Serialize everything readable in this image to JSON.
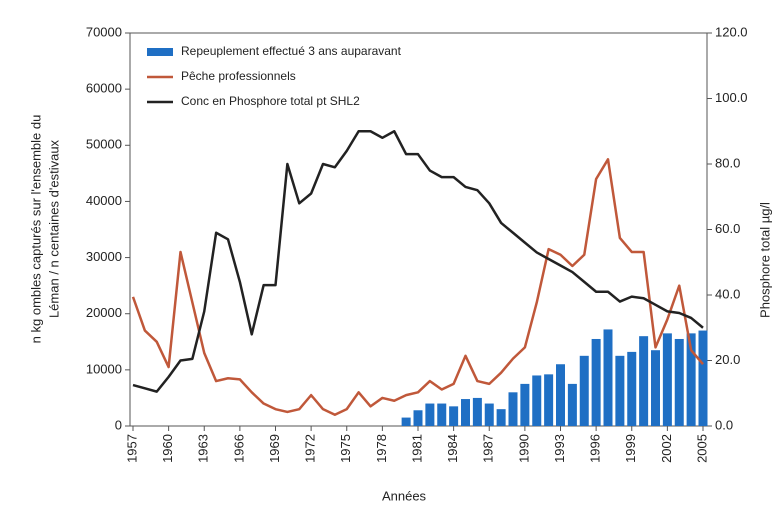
{
  "chart_data": {
    "type": "combo",
    "xlabel": "Années",
    "ylabel": [
      "n kg ombles capturés sur l'ensemble du",
      "Léman / n centaines d'estivaux"
    ],
    "y2label": "Phosphore total µg/l",
    "x": [
      1957,
      1958,
      1959,
      1960,
      1961,
      1962,
      1963,
      1964,
      1965,
      1966,
      1967,
      1968,
      1969,
      1970,
      1971,
      1972,
      1973,
      1974,
      1975,
      1976,
      1977,
      1978,
      1979,
      1980,
      1981,
      1982,
      1983,
      1984,
      1985,
      1986,
      1987,
      1988,
      1989,
      1990,
      1991,
      1992,
      1993,
      1994,
      1995,
      1996,
      1997,
      1998,
      1999,
      2000,
      2001,
      2002,
      2003,
      2004,
      2005
    ],
    "xlim": [
      1957,
      2005
    ],
    "xticks": [
      1957,
      1960,
      1963,
      1966,
      1969,
      1972,
      1975,
      1978,
      1981,
      1984,
      1987,
      1990,
      1993,
      1996,
      1999,
      2002,
      2005
    ],
    "ylim": [
      0,
      70000
    ],
    "yticks": [
      0,
      10000,
      20000,
      30000,
      40000,
      50000,
      60000,
      70000
    ],
    "y2lim": [
      0,
      120
    ],
    "y2ticks": [
      {
        "value": 0,
        "label": "0.0"
      },
      {
        "value": 20,
        "label": "20.0"
      },
      {
        "value": 40,
        "label": "40.0"
      },
      {
        "value": 60,
        "label": "60.0"
      },
      {
        "value": 80,
        "label": "80.0"
      },
      {
        "value": 100,
        "label": "100.0"
      },
      {
        "value": 120,
        "label": "120.0"
      }
    ],
    "legend": "upper left",
    "series": [
      {
        "name": "Repeuplement effectué 3 ans auparavant",
        "type": "bar",
        "color": "#1f6fc4",
        "values": [
          null,
          null,
          null,
          null,
          null,
          null,
          null,
          null,
          null,
          null,
          null,
          null,
          null,
          null,
          null,
          null,
          null,
          null,
          null,
          null,
          null,
          null,
          null,
          1500,
          2800,
          4000,
          4000,
          3500,
          4800,
          5000,
          4000,
          3000,
          6000,
          7500,
          9000,
          9200,
          11000,
          7500,
          12500,
          15500,
          17200,
          12500,
          13200,
          16000,
          13500,
          16500,
          15500,
          16500,
          17000
        ]
      },
      {
        "name": "Pêche professionnels",
        "type": "line",
        "color": "#c0583a",
        "values": [
          23000,
          17000,
          15000,
          10500,
          31000,
          22000,
          13000,
          8000,
          8500,
          8300,
          6000,
          4000,
          3000,
          2500,
          3000,
          5500,
          3000,
          2000,
          3000,
          6000,
          3500,
          5000,
          4500,
          5500,
          6000,
          8000,
          6500,
          7500,
          12500,
          8000,
          7500,
          9500,
          12000,
          14000,
          22000,
          31500,
          30500,
          28500,
          30500,
          44000,
          47500,
          33500,
          31000,
          31000,
          14000,
          19000,
          25000,
          13500,
          11000
        ]
      },
      {
        "name": "Conc en Phosphore total pt SHL2",
        "type": "line",
        "color": "#222222",
        "axis": "y2",
        "values": [
          12.5,
          11.5,
          10.5,
          15,
          20,
          20.5,
          35,
          59,
          57,
          44,
          28,
          43,
          43,
          80,
          68,
          71,
          80,
          79,
          84,
          90,
          90,
          88,
          90,
          83,
          83,
          78,
          76,
          76,
          73,
          72,
          68,
          62,
          59,
          56,
          53,
          51,
          49,
          47,
          44,
          41,
          41,
          38,
          39.5,
          39,
          37,
          35,
          34.5,
          33,
          30
        ]
      }
    ]
  }
}
